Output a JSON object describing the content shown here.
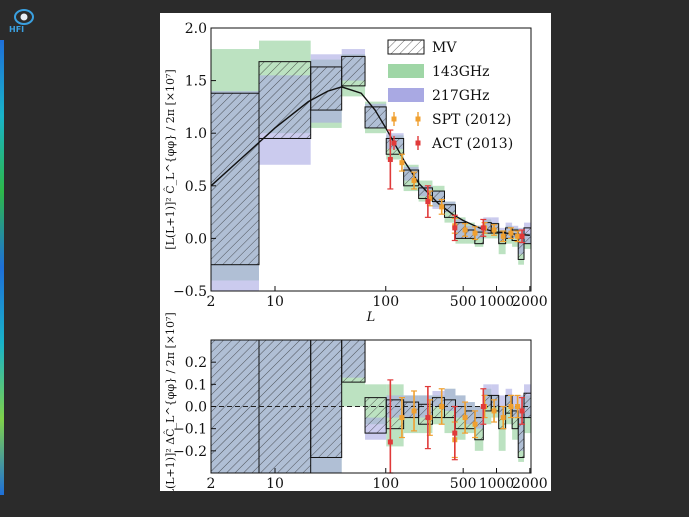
{
  "logo": {
    "text": "HFI"
  },
  "chart_data": [
    {
      "type": "bar",
      "panel": "top",
      "xscale": "custom-log-with-linear-low-L",
      "xticks": [
        "2",
        "10",
        "100",
        "500",
        "1000",
        "2000"
      ],
      "xlabel": "L",
      "ylabel": "[L(L+1)]² Ĉ_L^{φφ} / 2π [×10⁷]",
      "ylim": [
        -0.5,
        2.0
      ],
      "yticks": [
        "−0.5",
        "0.0",
        "0.5",
        "1.0",
        "1.5",
        "2.0"
      ],
      "legend_position": "top-right",
      "legend": [
        "MV",
        "143GHz",
        "217GHz",
        "SPT (2012)",
        "ACT (2013)"
      ],
      "bins": [
        {
          "lo": 2,
          "hi": 8,
          "mv": [
            -0.25,
            1.38
          ],
          "g143": [
            -0.4,
            1.8
          ],
          "g217": [
            -0.5,
            1.4
          ]
        },
        {
          "lo": 8,
          "hi": 21,
          "mv": [
            0.95,
            1.68
          ],
          "g143": [
            1.0,
            1.88
          ],
          "g217": [
            0.7,
            1.55
          ]
        },
        {
          "lo": 21,
          "hi": 40,
          "mv": [
            1.22,
            1.63
          ],
          "g143": [
            1.05,
            1.7
          ],
          "g217": [
            1.1,
            1.75
          ]
        },
        {
          "lo": 40,
          "hi": 65,
          "mv": [
            1.45,
            1.73
          ],
          "g143": [
            1.35,
            1.75
          ],
          "g217": [
            1.5,
            1.8
          ]
        },
        {
          "lo": 65,
          "hi": 101,
          "mv": [
            1.05,
            1.25
          ],
          "g143": [
            1.0,
            1.3
          ],
          "g217": [
            1.05,
            1.28
          ]
        },
        {
          "lo": 101,
          "hi": 145,
          "mv": [
            0.8,
            0.95
          ],
          "g143": [
            0.75,
            0.98
          ],
          "g217": [
            0.85,
            1.0
          ]
        },
        {
          "lo": 145,
          "hi": 198,
          "mv": [
            0.5,
            0.65
          ],
          "g143": [
            0.45,
            0.7
          ],
          "g217": [
            0.55,
            0.68
          ]
        },
        {
          "lo": 198,
          "hi": 264,
          "mv": [
            0.38,
            0.48
          ],
          "g143": [
            0.35,
            0.55
          ],
          "g217": [
            0.4,
            0.5
          ]
        },
        {
          "lo": 264,
          "hi": 339,
          "mv": [
            0.35,
            0.45
          ],
          "g143": [
            0.3,
            0.5
          ],
          "g217": [
            0.28,
            0.45
          ]
        },
        {
          "lo": 339,
          "hi": 426,
          "mv": [
            0.2,
            0.32
          ],
          "g143": [
            0.15,
            0.35
          ],
          "g217": [
            0.25,
            0.35
          ]
        },
        {
          "lo": 426,
          "hi": 525,
          "mv": [
            0.0,
            0.15
          ],
          "g143": [
            -0.05,
            0.2
          ],
          "g217": [
            0.0,
            0.18
          ]
        },
        {
          "lo": 525,
          "hi": 637,
          "mv": [
            0.0,
            0.08
          ],
          "g143": [
            -0.05,
            0.15
          ],
          "g217": [
            0.0,
            0.12
          ]
        },
        {
          "lo": 637,
          "hi": 760,
          "mv": [
            -0.05,
            0.06
          ],
          "g143": [
            -0.08,
            0.12
          ],
          "g217": [
            0.0,
            0.12
          ]
        },
        {
          "lo": 760,
          "hi": 897,
          "mv": [
            0.05,
            0.15
          ],
          "g143": [
            0.0,
            0.18
          ],
          "g217": [
            0.05,
            0.2
          ]
        },
        {
          "lo": 897,
          "hi": 1046,
          "mv": [
            0.05,
            0.14
          ],
          "g143": [
            0.0,
            0.15
          ],
          "g217": [
            0.08,
            0.2
          ]
        },
        {
          "lo": 1046,
          "hi": 1208,
          "mv": [
            -0.05,
            0.06
          ],
          "g143": [
            -0.15,
            0.08
          ],
          "g217": [
            -0.02,
            0.1
          ]
        },
        {
          "lo": 1208,
          "hi": 1383,
          "mv": [
            0.0,
            0.1
          ],
          "g143": [
            -0.05,
            0.12
          ],
          "g217": [
            0.0,
            0.15
          ]
        },
        {
          "lo": 1383,
          "hi": 1570,
          "mv": [
            -0.02,
            0.08
          ],
          "g143": [
            -0.08,
            0.1
          ],
          "g217": [
            0.0,
            0.12
          ]
        },
        {
          "lo": 1570,
          "hi": 1771,
          "mv": [
            -0.2,
            0.0
          ],
          "g143": [
            -0.25,
            0.05
          ],
          "g217": [
            -0.15,
            0.1
          ]
        },
        {
          "lo": 1771,
          "hi": 2048,
          "mv": [
            -0.05,
            0.1
          ],
          "g143": [
            -0.1,
            0.05
          ],
          "g217": [
            -0.05,
            0.15
          ]
        }
      ],
      "theory_curve": {
        "L": [
          2,
          10,
          20,
          30,
          40,
          60,
          80,
          100,
          150,
          200,
          300,
          400,
          500,
          700,
          1000,
          1500,
          2000
        ],
        "y": [
          0.5,
          1.05,
          1.3,
          1.4,
          1.44,
          1.38,
          1.22,
          1.05,
          0.72,
          0.52,
          0.33,
          0.23,
          0.17,
          0.1,
          0.06,
          0.04,
          0.03
        ]
      },
      "spt": [
        {
          "L": 140,
          "y": 0.72,
          "err": 0.08
        },
        {
          "L": 180,
          "y": 0.55,
          "err": 0.08
        },
        {
          "L": 250,
          "y": 0.38,
          "err": 0.07
        },
        {
          "L": 320,
          "y": 0.3,
          "err": 0.07
        },
        {
          "L": 420,
          "y": 0.12,
          "err": 0.07
        },
        {
          "L": 520,
          "y": 0.08,
          "err": 0.06
        },
        {
          "L": 640,
          "y": 0.05,
          "err": 0.06
        },
        {
          "L": 780,
          "y": 0.1,
          "err": 0.05
        },
        {
          "L": 950,
          "y": 0.08,
          "err": 0.05
        },
        {
          "L": 1150,
          "y": 0.02,
          "err": 0.05
        },
        {
          "L": 1350,
          "y": 0.05,
          "err": 0.05
        },
        {
          "L": 1550,
          "y": 0.02,
          "err": 0.05
        }
      ],
      "act": [
        {
          "L": 110,
          "y": 0.75,
          "err": 0.28
        },
        {
          "L": 240,
          "y": 0.35,
          "err": 0.15
        },
        {
          "L": 420,
          "y": 0.1,
          "err": 0.12
        },
        {
          "L": 760,
          "y": 0.1,
          "err": 0.08
        },
        {
          "L": 1700,
          "y": 0.02,
          "err": 0.06
        }
      ]
    },
    {
      "type": "bar",
      "panel": "bottom",
      "xticks": [
        "2",
        "10",
        "100",
        "500",
        "1000",
        "2000"
      ],
      "xlabel": "",
      "ylabel": "[L(L+1)]² ΔĈ_L^{φφ} / 2π [×10⁷]",
      "ylim": [
        -0.3,
        0.3
      ],
      "yticks": [
        "−0.2",
        "−0.1",
        "0.0",
        "0.1",
        "0.2"
      ],
      "bins": [
        {
          "lo": 2,
          "hi": 8,
          "mv": [
            -0.3,
            0.3
          ],
          "g143": [
            -0.3,
            0.3
          ],
          "g217": [
            -0.3,
            0.3
          ]
        },
        {
          "lo": 8,
          "hi": 21,
          "mv": [
            -0.3,
            0.3
          ],
          "g143": [
            -0.3,
            0.3
          ],
          "g217": [
            -0.3,
            0.3
          ]
        },
        {
          "lo": 21,
          "hi": 40,
          "mv": [
            -0.23,
            0.3
          ],
          "g143": [
            -0.3,
            0.3
          ],
          "g217": [
            -0.3,
            0.3
          ]
        },
        {
          "lo": 40,
          "hi": 65,
          "mv": [
            0.11,
            0.3
          ],
          "g143": [
            0.0,
            0.3
          ],
          "g217": [
            0.13,
            0.3
          ]
        },
        {
          "lo": 65,
          "hi": 101,
          "mv": [
            -0.12,
            0.04
          ],
          "g143": [
            -0.08,
            0.1
          ],
          "g217": [
            -0.15,
            -0.05
          ]
        },
        {
          "lo": 101,
          "hi": 145,
          "mv": [
            -0.1,
            0.03
          ],
          "g143": [
            -0.18,
            0.1
          ],
          "g217": [
            -0.05,
            0.05
          ]
        },
        {
          "lo": 145,
          "hi": 198,
          "mv": [
            -0.05,
            0.02
          ],
          "g143": [
            -0.12,
            0.05
          ],
          "g217": [
            -0.05,
            0.05
          ]
        },
        {
          "lo": 198,
          "hi": 264,
          "mv": [
            -0.08,
            0.01
          ],
          "g143": [
            -0.12,
            0.05
          ],
          "g217": [
            -0.05,
            0.05
          ]
        },
        {
          "lo": 264,
          "hi": 339,
          "mv": [
            -0.05,
            0.04
          ],
          "g143": [
            -0.08,
            0.05
          ],
          "g217": [
            0.0,
            0.07
          ]
        },
        {
          "lo": 339,
          "hi": 426,
          "mv": [
            -0.05,
            0.03
          ],
          "g143": [
            -0.12,
            0.08
          ],
          "g217": [
            -0.02,
            0.08
          ]
        },
        {
          "lo": 426,
          "hi": 525,
          "mv": [
            -0.1,
            0.0
          ],
          "g143": [
            -0.15,
            0.05
          ],
          "g217": [
            -0.05,
            0.05
          ]
        },
        {
          "lo": 525,
          "hi": 637,
          "mv": [
            -0.1,
            -0.02
          ],
          "g143": [
            -0.12,
            0.02
          ],
          "g217": [
            -0.08,
            0.02
          ]
        },
        {
          "lo": 637,
          "hi": 760,
          "mv": [
            -0.15,
            -0.05
          ],
          "g143": [
            -0.2,
            0.0
          ],
          "g217": [
            -0.1,
            0.0
          ]
        },
        {
          "lo": 760,
          "hi": 897,
          "mv": [
            -0.02,
            0.05
          ],
          "g143": [
            -0.08,
            0.08
          ],
          "g217": [
            0.0,
            0.1
          ]
        },
        {
          "lo": 897,
          "hi": 1046,
          "mv": [
            -0.02,
            0.05
          ],
          "g143": [
            -0.05,
            0.05
          ],
          "g217": [
            0.0,
            0.1
          ]
        },
        {
          "lo": 1046,
          "hi": 1208,
          "mv": [
            -0.1,
            0.0
          ],
          "g143": [
            -0.2,
            0.0
          ],
          "g217": [
            -0.05,
            0.05
          ]
        },
        {
          "lo": 1208,
          "hi": 1383,
          "mv": [
            -0.03,
            0.05
          ],
          "g143": [
            -0.08,
            0.05
          ],
          "g217": [
            0.0,
            0.08
          ]
        },
        {
          "lo": 1383,
          "hi": 1570,
          "mv": [
            -0.1,
            -0.02
          ],
          "g143": [
            -0.15,
            0.0
          ],
          "g217": [
            -0.05,
            0.05
          ]
        },
        {
          "lo": 1570,
          "hi": 1771,
          "mv": [
            -0.23,
            -0.05
          ],
          "g143": [
            -0.25,
            0.0
          ],
          "g217": [
            -0.2,
            0.05
          ]
        },
        {
          "lo": 1771,
          "hi": 2048,
          "mv": [
            -0.05,
            0.06
          ],
          "g143": [
            -0.12,
            0.05
          ],
          "g217": [
            -0.05,
            0.1
          ]
        }
      ],
      "spt": [
        {
          "L": 140,
          "y": -0.05,
          "err": 0.09
        },
        {
          "L": 180,
          "y": -0.02,
          "err": 0.09
        },
        {
          "L": 250,
          "y": -0.05,
          "err": 0.08
        },
        {
          "L": 320,
          "y": 0.0,
          "err": 0.08
        },
        {
          "L": 420,
          "y": -0.15,
          "err": 0.08
        },
        {
          "L": 520,
          "y": -0.05,
          "err": 0.07
        },
        {
          "L": 640,
          "y": -0.08,
          "err": 0.06
        },
        {
          "L": 780,
          "y": 0.0,
          "err": 0.05
        },
        {
          "L": 950,
          "y": -0.02,
          "err": 0.05
        },
        {
          "L": 1150,
          "y": -0.05,
          "err": 0.05
        },
        {
          "L": 1350,
          "y": 0.0,
          "err": 0.05
        },
        {
          "L": 1550,
          "y": 0.0,
          "err": 0.05
        }
      ],
      "act": [
        {
          "L": 110,
          "y": -0.16,
          "err": 0.28
        },
        {
          "L": 240,
          "y": -0.05,
          "err": 0.14
        },
        {
          "L": 420,
          "y": -0.12,
          "err": 0.12
        },
        {
          "L": 760,
          "y": 0.0,
          "err": 0.08
        },
        {
          "L": 1700,
          "y": -0.02,
          "err": 0.06
        }
      ]
    }
  ]
}
